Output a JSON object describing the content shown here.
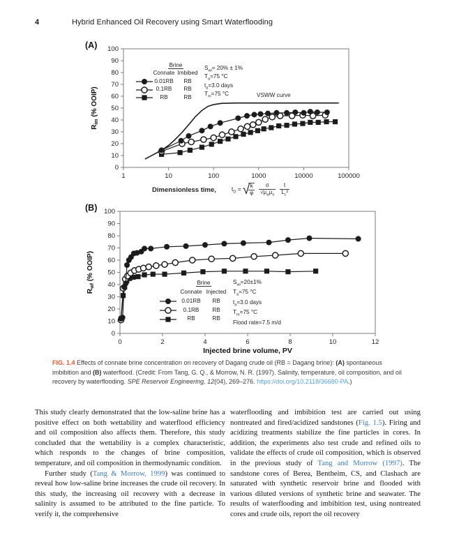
{
  "header": {
    "page_number": "4",
    "running_title": "Hybrid Enhanced Oil Recovery using Smart Waterflooding"
  },
  "colors": {
    "figure_label_orange": "#e8552e",
    "doi_link_blue": "#55a0d6",
    "reference_link_blue": "#3f7cb8",
    "chart_ink": "#1c1c1c",
    "axis_gray": "#7b7b7b"
  },
  "chart_data": [
    {
      "type": "line",
      "panel_label": "(A)",
      "xscale": "log",
      "xlim": [
        1,
        100000
      ],
      "xticks": [
        1,
        10,
        100,
        1000,
        10000,
        100000
      ],
      "xtick_labels": [
        "1",
        "10",
        "100",
        "1000",
        "10000",
        "100000"
      ],
      "xlabel": "Dimensionless time,",
      "ylabel": "R~im~ (% OOIP)",
      "ylim": [
        0,
        100
      ],
      "ytick_step": 10,
      "grid": false,
      "line_label": "VSWW curve",
      "legend_position": "inside-top-left",
      "legend": {
        "header": "Brine",
        "columns": [
          "Connate",
          "Imbibed"
        ],
        "rows": [
          {
            "marker": "filled-circle",
            "values": [
              "0.01RB",
              "RB"
            ]
          },
          {
            "marker": "open-circle",
            "values": [
              "0.1RB",
              "RB"
            ]
          },
          {
            "marker": "filled-square",
            "values": [
              "RB",
              "RB"
            ]
          }
        ]
      },
      "annotations": [
        "S~wi~= 20% ± 1%",
        "T~a~=75 °C",
        "t~a~=3.0 days",
        "T~m~=75 °C"
      ],
      "formula": {
        "lhs": "t~D~ =",
        "f1_num": "k",
        "f1_den": "φ",
        "f2_num": "σ",
        "f2_den": "√μ~w~μ~o~",
        "f3_num": "t",
        "f3_den": "L~c~²"
      },
      "series": [
        {
          "name": "VSWW",
          "marker": "none",
          "points": [
            [
              3,
              7
            ],
            [
              4,
              9.5
            ],
            [
              5,
              11.5
            ],
            [
              7,
              14.5
            ],
            [
              10,
              18.5
            ],
            [
              14,
              23.5
            ],
            [
              20,
              29.5
            ],
            [
              28,
              36
            ],
            [
              40,
              43
            ],
            [
              55,
              48
            ],
            [
              75,
              51.5
            ],
            [
              100,
              53
            ],
            [
              150,
              54
            ],
            [
              300,
              54.3
            ],
            [
              60000,
              54.3
            ]
          ]
        },
        {
          "name": "RB",
          "marker": "filled-square",
          "points": [
            [
              7,
              11
            ],
            [
              18,
              12.5
            ],
            [
              30,
              14.5
            ],
            [
              55,
              17
            ],
            [
              90,
              19.5
            ],
            [
              140,
              22
            ],
            [
              210,
              24
            ],
            [
              310,
              26
            ],
            [
              460,
              28
            ],
            [
              660,
              29.5
            ],
            [
              950,
              31
            ],
            [
              1300,
              32.5
            ],
            [
              1900,
              33.5
            ],
            [
              2800,
              35
            ],
            [
              4200,
              35.5
            ],
            [
              6300,
              36.5
            ],
            [
              9500,
              37
            ],
            [
              14000,
              38
            ],
            [
              21000,
              38
            ],
            [
              32000,
              38.5
            ],
            [
              50000,
              38.5
            ]
          ]
        },
        {
          "name": "0.1RB",
          "marker": "open-circle",
          "points": [
            [
              7,
              13.5
            ],
            [
              20,
              20
            ],
            [
              32,
              21.5
            ],
            [
              60,
              23.5
            ],
            [
              100,
              25
            ],
            [
              155,
              27.5
            ],
            [
              250,
              30
            ],
            [
              400,
              32.5
            ],
            [
              560,
              34.5
            ],
            [
              750,
              36
            ],
            [
              1000,
              38
            ],
            [
              1400,
              40.5
            ],
            [
              2000,
              42.5
            ],
            [
              3000,
              43.5
            ],
            [
              5500,
              43.5
            ],
            [
              9500,
              44
            ],
            [
              16000,
              43.5
            ],
            [
              30000,
              44
            ]
          ]
        },
        {
          "name": "0.01RB",
          "marker": "filled-circle",
          "points": [
            [
              7,
              14.5
            ],
            [
              19,
              22.5
            ],
            [
              28,
              26.5
            ],
            [
              55,
              31
            ],
            [
              85,
              34.5
            ],
            [
              140,
              37.5
            ],
            [
              350,
              41.5
            ],
            [
              550,
              43.5
            ],
            [
              800,
              44.5
            ],
            [
              1100,
              45
            ],
            [
              1600,
              45.5
            ],
            [
              2500,
              46
            ],
            [
              4200,
              46
            ],
            [
              6500,
              46.5
            ],
            [
              10000,
              46
            ],
            [
              14000,
              47
            ],
            [
              20000,
              46.5
            ],
            [
              33000,
              46.5
            ]
          ]
        }
      ]
    },
    {
      "type": "line",
      "panel_label": "(B)",
      "xscale": "linear",
      "xlim": [
        0,
        12
      ],
      "xticks": [
        0,
        2,
        4,
        6,
        8,
        10,
        12
      ],
      "xtick_labels": [
        "0",
        "2",
        "4",
        "6",
        "8",
        "10",
        "12"
      ],
      "xlabel": "Injected brine volume, PV",
      "ylabel": "R~wf~ (% OOIP)",
      "ylim": [
        0,
        100
      ],
      "ytick_step": 10,
      "grid": false,
      "legend_position": "inside-bottom-middle",
      "legend": {
        "header": "Brine",
        "columns": [
          "Connate",
          "Injected"
        ],
        "rows": [
          {
            "marker": "filled-circle",
            "values": [
              "0.01RB",
              "RB"
            ]
          },
          {
            "marker": "open-circle",
            "values": [
              "0.1RB",
              "RB"
            ]
          },
          {
            "marker": "filled-square",
            "values": [
              "RB",
              "RB"
            ]
          }
        ]
      },
      "annotations": [
        "S~wi~=20±1%",
        "T~a~=75 °C",
        "t~a~=3.0 days",
        "T~m~=75 °C",
        "Flood rate=7.5 m/d"
      ],
      "series": [
        {
          "name": "RB",
          "marker": "filled-square",
          "points": [
            [
              0.05,
              12
            ],
            [
              0.15,
              31
            ],
            [
              0.22,
              38
            ],
            [
              0.32,
              43
            ],
            [
              0.45,
              45
            ],
            [
              0.62,
              46
            ],
            [
              0.85,
              46.5
            ],
            [
              1.15,
              48
            ],
            [
              1.55,
              48.5
            ],
            [
              2.1,
              48.5
            ],
            [
              3.0,
              49.5
            ],
            [
              3.9,
              50.5
            ],
            [
              4.9,
              51
            ],
            [
              5.9,
              51
            ],
            [
              6.9,
              51
            ],
            [
              7.9,
              50.5
            ],
            [
              9.2,
              51
            ]
          ]
        },
        {
          "name": "0.1RB",
          "marker": "open-circle",
          "points": [
            [
              0.05,
              11
            ],
            [
              0.15,
              37
            ],
            [
              0.25,
              44.5
            ],
            [
              0.35,
              47
            ],
            [
              0.5,
              49.5
            ],
            [
              0.68,
              51.5
            ],
            [
              0.88,
              52.5
            ],
            [
              1.1,
              53.5
            ],
            [
              1.35,
              54.5
            ],
            [
              1.7,
              55.5
            ],
            [
              2.1,
              56.5
            ],
            [
              2.6,
              58
            ],
            [
              3.4,
              60
            ],
            [
              4.3,
              61
            ],
            [
              5.3,
              61.5
            ],
            [
              6.3,
              63
            ],
            [
              7.3,
              64
            ],
            [
              8.5,
              65.5
            ],
            [
              10.6,
              65.5
            ]
          ]
        },
        {
          "name": "0.01RB",
          "marker": "filled-circle",
          "points": [
            [
              0.05,
              12
            ],
            [
              0.12,
              13
            ],
            [
              0.2,
              38
            ],
            [
              0.27,
              41
            ],
            [
              0.33,
              56
            ],
            [
              0.42,
              60
            ],
            [
              0.52,
              62.5
            ],
            [
              0.65,
              65.5
            ],
            [
              0.8,
              66
            ],
            [
              1.0,
              67
            ],
            [
              1.15,
              69.5
            ],
            [
              1.45,
              69.5
            ],
            [
              2.2,
              71
            ],
            [
              3.1,
              71.5
            ],
            [
              4.0,
              72.5
            ],
            [
              4.9,
              73.5
            ],
            [
              5.8,
              74
            ],
            [
              7.0,
              74.5
            ],
            [
              7.9,
              76.5
            ],
            [
              8.9,
              78
            ],
            [
              11.2,
              77.5
            ]
          ]
        }
      ]
    }
  ],
  "figure": {
    "caption": {
      "segments": [
        {
          "t": "FIG. 1.4",
          "s": "figlabel"
        },
        {
          "t": " Effects of connate brine concentration on recovery of Dagang crude oil (RB = Dagang brine): ",
          "s": ""
        },
        {
          "t": "(A)",
          "s": "b"
        },
        {
          "t": " spontaneous imbibition and ",
          "s": ""
        },
        {
          "t": "(B)",
          "s": "b"
        },
        {
          "t": " waterflood. (Credit: From Tang, G. Q., & Morrow, N. R. (1997). Salinity, temperature, oil composition, and oil recovery by waterflooding. ",
          "s": ""
        },
        {
          "t": "SPE Reservoir Engineering, 12",
          "s": "i"
        },
        {
          "t": "(04), 269–276. ",
          "s": ""
        },
        {
          "t": "https://doi.org/10.2118/36680-PA",
          "s": "doi"
        },
        {
          "t": ".)",
          "s": ""
        }
      ]
    }
  },
  "body": {
    "left_column": [
      {
        "indent": false,
        "segments": [
          {
            "t": "This study clearly demonstrated that the low-saline brine has a positive effect on both wettability and waterflood efficiency and oil composition also affects them. Therefore, this study concluded that the wettability is a complex characteristic, which responds to the changes of brine composition, temperature, and oil composition in thermodynamic condition.",
            "s": ""
          }
        ]
      },
      {
        "indent": true,
        "segments": [
          {
            "t": "Further study (",
            "s": ""
          },
          {
            "t": "Tang & Morrow, 1999",
            "s": "link"
          },
          {
            "t": ") was continued to reveal how low-saline brine increases the crude oil recovery. In this study, the increasing oil recovery with a decrease in salinity is assumed to be attributed to the fine particle. To verify it, the comprehensive",
            "s": ""
          }
        ]
      }
    ],
    "right_column": [
      {
        "indent": false,
        "segments": [
          {
            "t": "waterflooding and imbibition test are carried out using nontreated and fired/acidized sandstones (",
            "s": ""
          },
          {
            "t": "Fig. 1.5",
            "s": "link"
          },
          {
            "t": "). Firing and acidizing treatments stabilize the fine particles in cores. In addition, the experiments also test crude and refined oils to validate the effects of crude oil composition, which is observed in the previous study of ",
            "s": ""
          },
          {
            "t": "Tang and Morrow (1997)",
            "s": "link"
          },
          {
            "t": ". The sandstone cores of Berea, Bentheim, CS, and Clashach are saturated with synthetic reservoir brine and flooded with various diluted versions of synthetic brine and seawater. The results of waterflooding and imbibition test, using nontreated cores and crude oils, report the oil recovery",
            "s": ""
          }
        ]
      }
    ]
  }
}
